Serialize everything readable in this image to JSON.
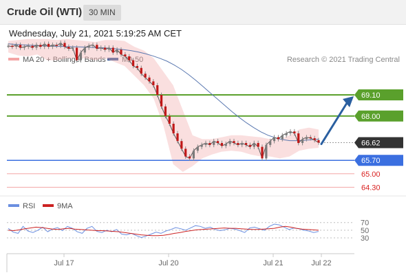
{
  "header": {
    "title": "Crude Oil (WTI)",
    "timeframe": "30 MIN"
  },
  "datetime": "Wednesday, July 21, 2021 5:19:25 AM CET",
  "legend": {
    "bollinger": "MA 20 + Bollinger Bands",
    "ma50": "MA 50",
    "credit": "Research © 2021 Trading Central"
  },
  "rsi_legend": {
    "rsi": "RSI",
    "ma": "9MA"
  },
  "colors": {
    "resistance": "#5aa02c",
    "support": "#3b6fe0",
    "support_light": "#f3a5a5",
    "support_label": "#d9201f",
    "current": "#333333",
    "arrow": "#2a5fa0",
    "bollinger": "#f4b7b7",
    "ma50": "#5a78b0",
    "candle_up": "#7a7a7a",
    "candle_down": "#c01818",
    "rsi": "#6b8fe0",
    "rsi_ma": "#cc2222"
  },
  "levels": [
    {
      "value": 69.1,
      "label": "69.10",
      "type": "resistance"
    },
    {
      "value": 68.0,
      "label": "68.00",
      "type": "resistance"
    },
    {
      "value": 66.62,
      "label": "66.62",
      "type": "current"
    },
    {
      "value": 65.7,
      "label": "65.70",
      "type": "support"
    },
    {
      "value": 65.0,
      "label": "65.00",
      "type": "support_light"
    },
    {
      "value": 64.3,
      "label": "64.30",
      "type": "support_light"
    }
  ],
  "chart_data": {
    "type": "line",
    "x_ticks": [
      "Jul 17",
      "Jul 20",
      "Jul 21",
      "Jul 22"
    ],
    "ylim": [
      63.85,
      70.1
    ],
    "price": [
      71.65,
      71.6,
      71.7,
      71.55,
      71.6,
      71.65,
      71.55,
      71.7,
      71.6,
      71.75,
      71.6,
      71.7,
      71.65,
      71.8,
      71.6,
      71.5,
      71.55,
      70.9,
      71.3,
      71.55,
      71.65,
      71.7,
      71.5,
      71.55,
      71.45,
      71.55,
      71.3,
      71.45,
      71.2,
      71.1,
      70.9,
      70.6,
      70.5,
      70.2,
      70.0,
      69.8,
      69.6,
      69.1,
      68.5,
      68.0,
      67.6,
      67.1,
      66.7,
      66.3,
      65.9,
      65.8,
      66.2,
      66.4,
      66.5,
      66.6,
      66.5,
      66.7,
      66.6,
      66.45,
      66.55,
      66.7,
      66.6,
      66.5,
      66.6,
      66.5,
      66.4,
      66.6,
      66.4,
      65.8,
      66.5,
      66.7,
      66.9,
      66.8,
      67.0,
      67.1,
      67.2,
      67.1,
      66.6,
      66.8,
      66.9,
      66.85,
      66.75,
      66.62
    ],
    "ma50": [
      71.75,
      71.72,
      71.7,
      71.68,
      71.66,
      71.64,
      71.63,
      71.62,
      71.61,
      71.6,
      71.59,
      71.58,
      71.56,
      71.55,
      71.52,
      71.49,
      71.45,
      71.4,
      71.33,
      71.24,
      71.13,
      71.0,
      70.85,
      70.65,
      70.42,
      70.15,
      69.85,
      69.53,
      69.2,
      68.88,
      68.55,
      68.23,
      67.93,
      67.65,
      67.4,
      67.18,
      67.0,
      66.87,
      66.78,
      66.72,
      66.72,
      66.74,
      66.77,
      66.8
    ],
    "bb_upper": [
      71.9,
      71.95,
      72.0,
      72.0,
      72.0,
      71.95,
      72.0,
      71.95,
      71.9,
      71.85,
      71.95,
      71.95,
      71.9,
      71.6,
      71.4,
      71.0,
      70.3,
      69.6,
      68.3,
      67.0,
      66.8,
      66.8,
      66.9,
      67.0,
      67.0,
      66.95,
      66.9,
      66.8,
      66.8,
      67.0,
      67.3,
      67.4,
      67.3
    ],
    "bb_lower": [
      71.3,
      71.15,
      71.1,
      71.2,
      70.9,
      70.9,
      71.0,
      71.0,
      71.0,
      70.9,
      71.0,
      70.8,
      70.6,
      70.1,
      69.6,
      68.9,
      67.5,
      65.5,
      65.1,
      65.4,
      65.8,
      66.0,
      66.15,
      66.2,
      66.15,
      66.0,
      65.9,
      65.9,
      65.8,
      65.9,
      66.2,
      66.3,
      66.35
    ],
    "projection": {
      "from": 66.62,
      "to": 69.1
    },
    "rsi": {
      "levels": [
        70,
        50,
        30
      ],
      "series": [
        {
          "name": "RSI",
          "values": [
            55,
            45,
            42,
            60,
            48,
            44,
            50,
            58,
            46,
            53,
            57,
            49,
            60,
            55,
            46,
            42,
            55,
            60,
            47,
            44,
            50,
            46,
            52,
            40,
            38,
            42,
            36,
            31,
            35,
            40,
            45,
            42,
            48,
            52,
            57,
            54,
            50,
            56,
            62,
            60,
            55,
            58,
            52,
            49,
            51,
            55,
            53,
            49,
            44,
            56,
            58,
            54,
            50,
            60,
            66,
            64,
            58,
            52,
            56,
            54,
            50,
            48,
            44,
            47
          ]
        },
        {
          "name": "9MA",
          "values": [
            50,
            49,
            51,
            54,
            56,
            58,
            57,
            55,
            53,
            52,
            54,
            55,
            53,
            52,
            51,
            50,
            49,
            49,
            48,
            47,
            46,
            44,
            42,
            40,
            38,
            37,
            36,
            36,
            37,
            39,
            42,
            44,
            47,
            49,
            51,
            52,
            53,
            54,
            55,
            56,
            55,
            55,
            54,
            53,
            52,
            52,
            53,
            54,
            55,
            58,
            60,
            58,
            55,
            53,
            52,
            51,
            50
          ]
        }
      ]
    }
  }
}
